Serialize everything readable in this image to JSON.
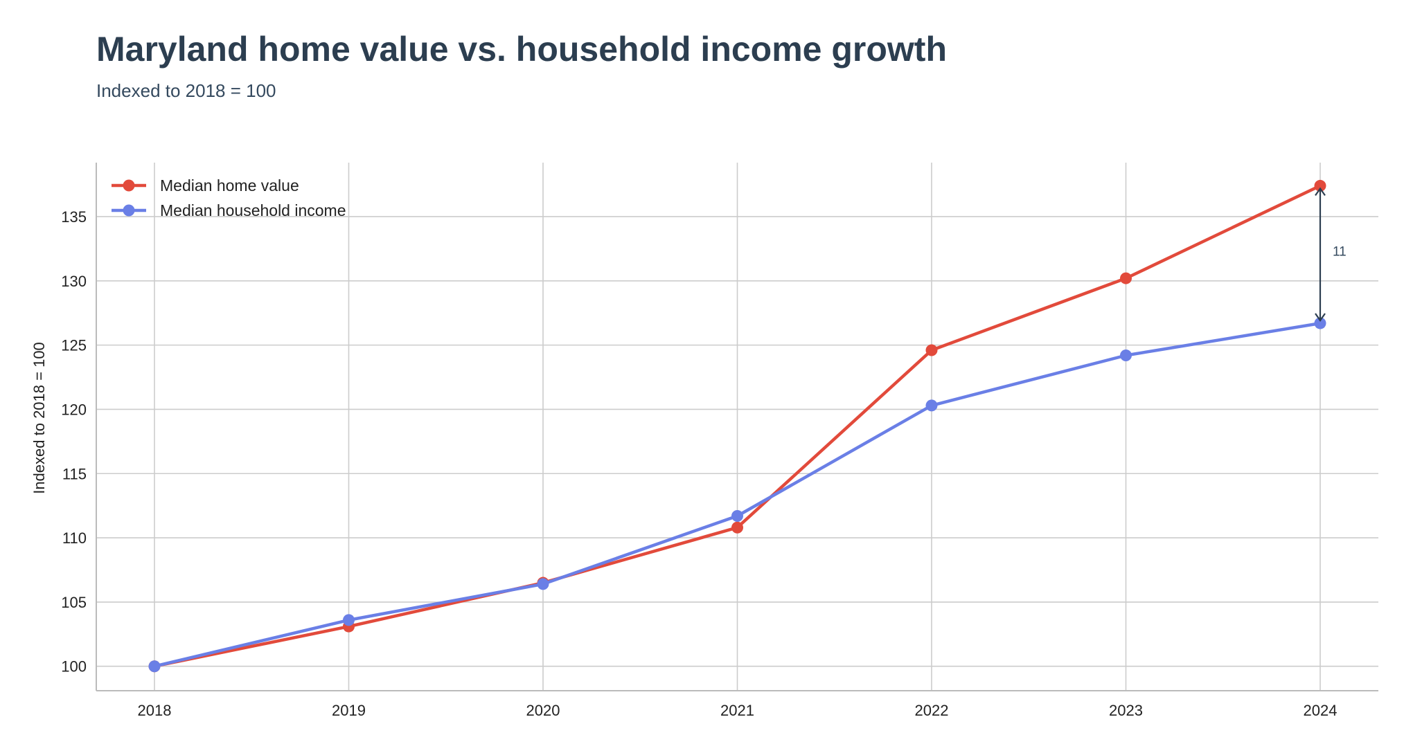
{
  "header": {
    "title": "Maryland home value vs. household income growth",
    "subtitle": "Indexed to 2018 = 100"
  },
  "chart_data": {
    "type": "line",
    "title": "Maryland home value vs. household income growth",
    "subtitle": "Indexed to 2018 = 100",
    "xlabel": "",
    "ylabel": "Indexed to 2018 = 100",
    "x": [
      "2018",
      "2019",
      "2020",
      "2021",
      "2022",
      "2023",
      "2024"
    ],
    "ylim": [
      98.1,
      139.2
    ],
    "yticks": [
      100,
      105,
      110,
      115,
      120,
      125,
      130,
      135
    ],
    "grid": true,
    "legend_position": "top-left",
    "series": [
      {
        "name": "Median home value",
        "color": "#e24a3b",
        "values": [
          100.0,
          103.1,
          106.5,
          110.8,
          124.6,
          130.2,
          137.4
        ]
      },
      {
        "name": "Median household income",
        "color": "#6a7fe6",
        "values": [
          100.0,
          103.6,
          106.4,
          111.7,
          120.3,
          124.2,
          126.7
        ]
      }
    ],
    "annotations": [
      {
        "type": "gap-arrow",
        "x": "2024",
        "from": 126.7,
        "to": 137.4,
        "label": "11",
        "color": "#2c3e50"
      }
    ]
  }
}
